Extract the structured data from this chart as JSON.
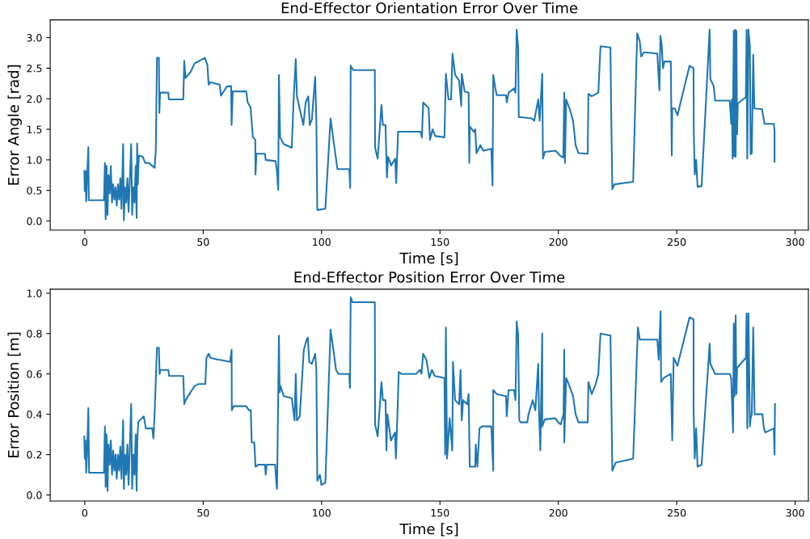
{
  "chart_data": [
    {
      "type": "line",
      "title": "End-Effector Orientation Error Over Time",
      "xlabel": "Time [s]",
      "ylabel": "Error Angle [rad]",
      "xlim": [
        -14.6,
        305.6
      ],
      "ylim": [
        -0.15,
        3.29
      ],
      "xticks": [
        0,
        50,
        100,
        150,
        200,
        250,
        300
      ],
      "yticks": [
        {
          "value": 0,
          "label": "0.0"
        },
        {
          "value": 0.5,
          "label": "0.5"
        },
        {
          "value": 1,
          "label": "1.0"
        },
        {
          "value": 1.5,
          "label": "1.5"
        },
        {
          "value": 2,
          "label": "2.0"
        },
        {
          "value": 2.5,
          "label": "2.5"
        },
        {
          "value": 3,
          "label": "3.0"
        }
      ],
      "series": [
        {
          "color": "#1f77b4",
          "x": [
            -0.2,
            0.0,
            0.3,
            0.6,
            1.0,
            1.5,
            1.7,
            8.1,
            8.5,
            8.8,
            9.2,
            9.6,
            10.0,
            10.5,
            11.0,
            11.5,
            12.0,
            12.5,
            13.0,
            13.5,
            14.0,
            14.5,
            15.0,
            15.5,
            16.2,
            16.5,
            17.0,
            17.5,
            18.0,
            18.5,
            19.6,
            20.0,
            20.5,
            21.0,
            21.5,
            21.9,
            22.1,
            22.4,
            22.8,
            24.5,
            25.5,
            27.0,
            29.5,
            30.0,
            30.5,
            31.3,
            31.5,
            31.8,
            35.3,
            35.5,
            41.6,
            42.0,
            42.5,
            44.7,
            46.4,
            50.7,
            51.8,
            52.3,
            53.0,
            57.0,
            57.5,
            60.0,
            61.8,
            62.0,
            62.5,
            68.2,
            68.8,
            70.0,
            71.0,
            72.0,
            72.1,
            72.5,
            76.1,
            76.4,
            80.6,
            81.2,
            81.7,
            82.0,
            82.5,
            84.0,
            87.4,
            88.2,
            89.1,
            89.6,
            92.3,
            93.3,
            94.4,
            95.0,
            95.9,
            97.3,
            97.8,
            98.2,
            101.6,
            103.8,
            105.0,
            106.7,
            111.7,
            112.1,
            112.3,
            113.4,
            122.5,
            122.6,
            123.7,
            125.3,
            125.9,
            127.0,
            127.6,
            128.1,
            129.4,
            131.1,
            131.5,
            132.3,
            133.4,
            141.8,
            142.4,
            142.9,
            145.2,
            145.8,
            146.9,
            148.0,
            151.9,
            152.5,
            153.6,
            154.7,
            155.3,
            156.4,
            158.1,
            159.0,
            159.2,
            160.4,
            162.1,
            162.4,
            162.6,
            164.3,
            164.9,
            165.4,
            167.1,
            168.3,
            171.7,
            172.2,
            172.5,
            173.4,
            174.0,
            177.9,
            178.2,
            179.0,
            181.3,
            181.9,
            182.4,
            183.0,
            183.3,
            184.1,
            188.7,
            189.8,
            191.5,
            192.1,
            193.2,
            193.5,
            194.3,
            198.8,
            201.0,
            202.1,
            202.5,
            202.8,
            203.3,
            205.0,
            206.2,
            207.3,
            208.5,
            212.4,
            212.7,
            214.1,
            216.9,
            217.8,
            222.0,
            222.3,
            222.8,
            223.7,
            231.6,
            233.3,
            234.4,
            235.0,
            236.1,
            241.8,
            242.7,
            243.1,
            243.6,
            244.2,
            244.8,
            247.5,
            247.9,
            248.1,
            249.2,
            250.3,
            255.4,
            257.1,
            257.2,
            257.6,
            258.2,
            258.8,
            260.5,
            263.9,
            264.2,
            265.6,
            266.2,
            272.4,
            273.0,
            273.3,
            273.6,
            274.1,
            274.3,
            274.7,
            274.9,
            275.2,
            275.5,
            275.8,
            279.2,
            279.5,
            279.8,
            280.3,
            280.9,
            281.2,
            281.7,
            282.3,
            282.8,
            286.0,
            287.1,
            291.0,
            291.3,
            291.3
          ],
          "values": [
            0.82,
            0.49,
            0.82,
            0.32,
            0.75,
            1.21,
            0.34,
            0.34,
            0.95,
            0.03,
            0.9,
            0.1,
            0.75,
            0.45,
            0.9,
            0.3,
            0.6,
            0.35,
            0.55,
            0.25,
            0.6,
            0.35,
            0.7,
            0.2,
            1.26,
            0.01,
            0.55,
            0.3,
            0.7,
            0.15,
            1.26,
            0.1,
            0.55,
            0.3,
            0.9,
            0.05,
            1.27,
            0.6,
            1.07,
            1.05,
            0.95,
            0.95,
            0.87,
            1.18,
            2.67,
            2.67,
            1.77,
            2.1,
            2.1,
            1.99,
            1.99,
            2.62,
            2.34,
            2.44,
            2.58,
            2.67,
            2.55,
            2.23,
            2.27,
            2.23,
            2.05,
            2.2,
            2.21,
            1.57,
            2.12,
            2.12,
            1.94,
            1.86,
            1.37,
            1.33,
            0.76,
            1.1,
            1.1,
            1.0,
            0.98,
            0.8,
            0.51,
            2.39,
            1.37,
            1.26,
            1.2,
            1.99,
            2.65,
            2.04,
            1.57,
            1.94,
            2.04,
            1.57,
            1.66,
            2.36,
            1.64,
            0.18,
            0.2,
            1.68,
            1.33,
            0.85,
            0.85,
            0.54,
            2.54,
            2.47,
            2.47,
            1.2,
            1.02,
            1.9,
            1.57,
            1.57,
            0.71,
            1.05,
            0.91,
            1.02,
            0.62,
            1.46,
            1.46,
            1.46,
            1.37,
            1.94,
            1.85,
            1.33,
            1.5,
            1.39,
            1.37,
            2.41,
            1.99,
            1.99,
            2.74,
            2.39,
            2.3,
            1.88,
            2.41,
            2.12,
            2.1,
            0.95,
            1.55,
            1.46,
            1.5,
            1.11,
            1.24,
            1.15,
            1.18,
            0.58,
            2.39,
            2.17,
            2.06,
            2.06,
            1.94,
            2.1,
            2.17,
            2.1,
            3.13,
            2.85,
            1.7,
            1.7,
            1.68,
            1.64,
            1.99,
            1.64,
            2.41,
            1.02,
            1.13,
            1.15,
            1.06,
            1.04,
            2.1,
            0.95,
            1.99,
            1.81,
            1.64,
            1.24,
            1.11,
            1.1,
            2.08,
            2.04,
            2.1,
            2.86,
            2.84,
            1.84,
            0.52,
            0.6,
            0.64,
            3.07,
            2.94,
            2.69,
            2.76,
            2.74,
            2.14,
            3.03,
            2.9,
            2.5,
            2.61,
            2.61,
            1.07,
            1.84,
            1.84,
            1.73,
            2.54,
            2.5,
            1.46,
            0.76,
            1.0,
            0.56,
            0.57,
            3.13,
            2.32,
            2.21,
            1.97,
            1.97,
            1.59,
            1.99,
            1.02,
            3.11,
            1.06,
            3.13,
            1.05,
            3.11,
            1.42,
            1.92,
            2.03,
            3.13,
            1.02,
            3.13,
            2.85,
            1.09,
            1.11,
            2.72,
            1.84,
            1.83,
            1.59,
            1.59,
            1.48,
            0.97
          ]
        }
      ]
    },
    {
      "type": "line",
      "title": "End-Effector Position Error Over Time",
      "xlabel": "Time [s]",
      "ylabel": "Error Position [m]",
      "xlim": [
        -14.6,
        305.6
      ],
      "ylim": [
        -0.03,
        1.02
      ],
      "xticks": [
        0,
        50,
        100,
        150,
        200,
        250,
        300
      ],
      "yticks": [
        {
          "value": 0,
          "label": "0.0"
        },
        {
          "value": 0.2,
          "label": "0.2"
        },
        {
          "value": 0.4,
          "label": "0.4"
        },
        {
          "value": 0.6,
          "label": "0.6"
        },
        {
          "value": 0.8,
          "label": "0.8"
        },
        {
          "value": 1,
          "label": "1.0"
        }
      ],
      "series": [
        {
          "color": "#1f77b4",
          "x": [
            -0.2,
            0.0,
            0.3,
            0.6,
            1.0,
            1.5,
            1.8,
            8.1,
            8.5,
            8.8,
            9.2,
            9.6,
            10.0,
            10.5,
            11.0,
            11.5,
            12.0,
            12.5,
            13.0,
            13.5,
            14.0,
            14.5,
            15.0,
            15.5,
            16.2,
            16.5,
            17.0,
            17.5,
            18.0,
            18.5,
            19.6,
            20.0,
            20.5,
            21.0,
            21.5,
            21.9,
            22.2,
            22.6,
            23.2,
            24.9,
            25.8,
            28.5,
            29.0,
            29.5,
            30.5,
            31.3,
            31.6,
            31.9,
            35.3,
            35.6,
            41.6,
            42.0,
            42.6,
            44.7,
            46.4,
            48.1,
            50.9,
            51.4,
            52.3,
            53.1,
            56.5,
            57.0,
            61.4,
            62.0,
            62.1,
            62.9,
            68.2,
            69.3,
            70.1,
            70.5,
            71.6,
            72.1,
            73.3,
            76.1,
            76.4,
            76.8,
            80.4,
            80.9,
            81.2,
            82.0,
            82.3,
            82.6,
            84.0,
            87.4,
            88.6,
            89.1,
            89.6,
            90.8,
            92.5,
            93.7,
            94.2,
            94.8,
            95.9,
            97.3,
            97.8,
            98.2,
            99.3,
            99.9,
            101.6,
            103.8,
            105.0,
            106.1,
            107.2,
            111.7,
            112.0,
            112.3,
            113.1,
            122.5,
            122.6,
            123.7,
            125.3,
            125.9,
            127.0,
            127.4,
            127.8,
            129.3,
            131.0,
            131.4,
            132.1,
            132.6,
            133.7,
            139.9,
            141.6,
            142.2,
            142.9,
            144.3,
            145.5,
            146.6,
            147.8,
            151.9,
            152.2,
            152.5,
            153.0,
            154.1,
            155.2,
            155.5,
            156.4,
            158.1,
            158.7,
            159.2,
            159.8,
            161.5,
            162.1,
            162.6,
            164.9,
            165.1,
            165.8,
            166.7,
            167.8,
            171.7,
            172.5,
            172.5,
            174.0,
            177.9,
            178.2,
            179.0,
            181.3,
            181.9,
            182.4,
            183.0,
            183.5,
            184.1,
            186.9,
            187.4,
            189.2,
            190.3,
            191.5,
            191.8,
            192.4,
            193.2,
            193.2,
            194.3,
            198.8,
            199.9,
            201.0,
            202.2,
            202.5,
            202.5,
            203.3,
            205.0,
            206.2,
            207.3,
            208.5,
            212.4,
            212.7,
            214.1,
            215.8,
            216.9,
            217.8,
            222.0,
            222.3,
            222.8,
            224.2,
            231.6,
            233.6,
            234.4,
            241.8,
            242.4,
            243.2,
            243.4,
            244.5,
            247.5,
            248.1,
            248.7,
            250.3,
            255.4,
            257.1,
            257.1,
            257.6,
            258.2,
            258.8,
            260.5,
            263.9,
            264.2,
            266.2,
            272.4,
            273.0,
            273.8,
            274.1,
            274.4,
            274.9,
            275.2,
            275.5,
            279.2,
            279.5,
            279.8,
            280.3,
            280.9,
            281.2,
            281.7,
            282.3,
            282.9,
            286.2,
            286.8,
            287.4,
            291.0,
            291.3,
            291.5
          ],
          "values": [
            0.29,
            0.18,
            0.27,
            0.11,
            0.22,
            0.43,
            0.11,
            0.11,
            0.34,
            0.04,
            0.3,
            0.02,
            0.25,
            0.15,
            0.27,
            0.1,
            0.22,
            0.12,
            0.2,
            0.08,
            0.2,
            0.12,
            0.24,
            0.08,
            0.37,
            0.03,
            0.2,
            0.1,
            0.25,
            0.05,
            0.45,
            0.03,
            0.2,
            0.1,
            0.3,
            0.02,
            0.28,
            0.36,
            0.37,
            0.39,
            0.33,
            0.33,
            0.28,
            0.41,
            0.73,
            0.73,
            0.6,
            0.62,
            0.62,
            0.59,
            0.59,
            0.45,
            0.47,
            0.51,
            0.54,
            0.55,
            0.55,
            0.68,
            0.7,
            0.68,
            0.67,
            0.67,
            0.66,
            0.72,
            0.42,
            0.44,
            0.44,
            0.42,
            0.42,
            0.26,
            0.26,
            0.14,
            0.15,
            0.15,
            0.1,
            0.15,
            0.15,
            0.06,
            0.03,
            0.79,
            0.51,
            0.54,
            0.49,
            0.48,
            0.37,
            0.6,
            0.37,
            0.39,
            0.72,
            0.77,
            0.78,
            0.66,
            0.65,
            0.7,
            0.62,
            0.07,
            0.1,
            0.05,
            0.06,
            0.82,
            0.72,
            0.62,
            0.6,
            0.6,
            0.53,
            0.98,
            0.955,
            0.955,
            0.35,
            0.29,
            0.56,
            0.47,
            0.47,
            0.22,
            0.4,
            0.27,
            0.31,
            0.18,
            0.42,
            0.61,
            0.6,
            0.6,
            0.62,
            0.6,
            0.7,
            0.67,
            0.58,
            0.62,
            0.59,
            0.58,
            0.2,
            0.83,
            0.18,
            0.38,
            0.22,
            0.66,
            0.47,
            0.45,
            0.62,
            0.37,
            0.47,
            0.45,
            0.5,
            0.14,
            0.14,
            0.25,
            0.14,
            0.33,
            0.34,
            0.34,
            0.12,
            0.52,
            0.5,
            0.49,
            0.39,
            0.52,
            0.52,
            0.47,
            0.86,
            0.8,
            0.37,
            0.36,
            0.36,
            0.4,
            0.47,
            0.42,
            0.65,
            0.43,
            0.22,
            0.8,
            0.34,
            0.375,
            0.38,
            0.36,
            0.35,
            0.4,
            0.72,
            0.26,
            0.58,
            0.53,
            0.49,
            0.4,
            0.36,
            0.36,
            0.56,
            0.5,
            0.55,
            0.6,
            0.8,
            0.79,
            0.56,
            0.12,
            0.16,
            0.18,
            0.83,
            0.77,
            0.77,
            0.67,
            0.91,
            0.56,
            0.58,
            0.6,
            0.27,
            0.68,
            0.64,
            0.88,
            0.87,
            0.43,
            0.18,
            0.33,
            0.14,
            0.15,
            0.75,
            0.65,
            0.6,
            0.6,
            0.58,
            0.31,
            0.85,
            0.49,
            0.89,
            0.5,
            0.63,
            0.68,
            0.9,
            0.33,
            0.9,
            0.34,
            0.38,
            0.4,
            0.83,
            0.4,
            0.4,
            0.33,
            0.31,
            0.33,
            0.2,
            0.45
          ]
        }
      ]
    }
  ]
}
